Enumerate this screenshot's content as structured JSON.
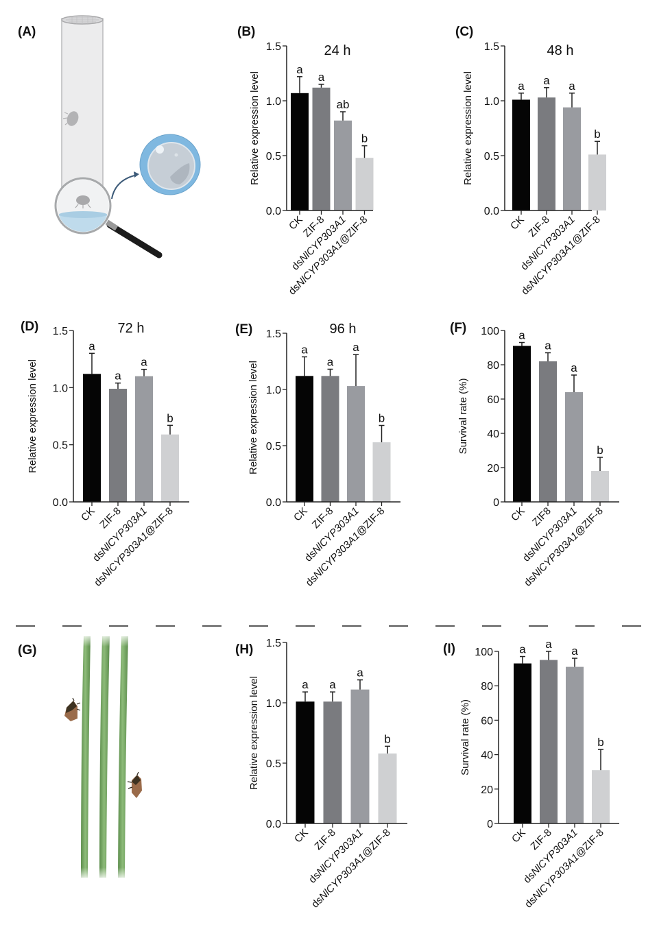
{
  "figure": {
    "panel_a": {
      "label": "(A)",
      "caption": "Tube feeding bioassay with magnified droplet view"
    },
    "panel_g": {
      "label": "(G)",
      "caption": "Planthoppers feeding on rice stems"
    }
  },
  "colors": {
    "bar_ck": "#050505",
    "bar_zif": "#7a7b7f",
    "bar_ds": "#999ba0",
    "bar_dszif": "#cfd0d2",
    "axis": "#222222",
    "tube_glass": "#eceded",
    "droplet_blue": "#7fb8e0",
    "stem_green": "#6e9e5c",
    "insect_brown": "#9a6b4a"
  },
  "chart_data": [
    {
      "id": "B",
      "panel_label": "(B)",
      "type": "bar",
      "title": "24 h",
      "ylabel": "Relative expression level",
      "ylim": [
        0,
        1.5
      ],
      "yticks": [
        0.0,
        0.5,
        1.0,
        1.5
      ],
      "ytick_labels": [
        "0.0",
        "0.5",
        "1.0",
        "1.5"
      ],
      "categories": [
        "CK",
        "ZIF-8",
        "dsNlCYP303A1",
        "dsNlCYP303A1@ZIF-8"
      ],
      "values": [
        1.07,
        1.12,
        0.82,
        0.48
      ],
      "error_upper": [
        1.22,
        1.15,
        0.9,
        0.59
      ],
      "significance": [
        "a",
        "a",
        "ab",
        "b"
      ]
    },
    {
      "id": "C",
      "panel_label": "(C)",
      "type": "bar",
      "title": "48 h",
      "ylabel": "Relative expression level",
      "ylim": [
        0,
        1.5
      ],
      "yticks": [
        0.0,
        0.5,
        1.0,
        1.5
      ],
      "ytick_labels": [
        "0.0",
        "0.5",
        "1.0",
        "1.5"
      ],
      "categories": [
        "CK",
        "ZIF-8",
        "dsNlCYP303A1",
        "dsNlCYP303A1@ZIF-8"
      ],
      "values": [
        1.01,
        1.03,
        0.94,
        0.51
      ],
      "error_upper": [
        1.07,
        1.12,
        1.07,
        0.63
      ],
      "significance": [
        "a",
        "a",
        "a",
        "b"
      ]
    },
    {
      "id": "D",
      "panel_label": "(D)",
      "type": "bar",
      "title": "72 h",
      "ylabel": "Relative expression level",
      "ylim": [
        0,
        1.5
      ],
      "yticks": [
        0.0,
        0.5,
        1.0,
        1.5
      ],
      "ytick_labels": [
        "0.0",
        "0.5",
        "1.0",
        "1.5"
      ],
      "categories": [
        "CK",
        "ZIF-8",
        "dsNlCYP303A1",
        "dsNlCYP303A1@ZIF-8"
      ],
      "values": [
        1.12,
        0.99,
        1.1,
        0.59
      ],
      "error_upper": [
        1.3,
        1.04,
        1.16,
        0.67
      ],
      "significance": [
        "a",
        "a",
        "a",
        "b"
      ]
    },
    {
      "id": "E",
      "panel_label": "(E)",
      "type": "bar",
      "title": "96 h",
      "ylabel": "Relative expression level",
      "ylim": [
        0,
        1.5
      ],
      "yticks": [
        0.0,
        0.5,
        1.0,
        1.5
      ],
      "ytick_labels": [
        "0.0",
        "0.5",
        "1.0",
        "1.5"
      ],
      "categories": [
        "CK",
        "ZIF-8",
        "dsNlCYP303A1",
        "dsNlCYP303A1@ZIF-8"
      ],
      "values": [
        1.12,
        1.12,
        1.03,
        0.53
      ],
      "error_upper": [
        1.29,
        1.18,
        1.31,
        0.68
      ],
      "significance": [
        "a",
        "a",
        "a",
        "b"
      ]
    },
    {
      "id": "F",
      "panel_label": "(F)",
      "type": "bar",
      "title": "",
      "ylabel": "Survival rate (%)",
      "ylim": [
        0,
        100
      ],
      "yticks": [
        0,
        20,
        40,
        60,
        80,
        100
      ],
      "ytick_labels": [
        "0",
        "20",
        "40",
        "60",
        "80",
        "100"
      ],
      "categories": [
        "CK",
        "ZIF8",
        "dsNlCYP303A1",
        "dsNlCYP303A1@ZIF-8"
      ],
      "values": [
        91,
        82,
        64,
        18
      ],
      "error_upper": [
        93,
        87,
        74,
        26
      ],
      "significance": [
        "a",
        "a",
        "a",
        "b"
      ]
    },
    {
      "id": "H",
      "panel_label": "(H)",
      "type": "bar",
      "title": "",
      "ylabel": "Relative expression level",
      "ylim": [
        0,
        1.5
      ],
      "yticks": [
        0.0,
        0.5,
        1.0,
        1.5
      ],
      "ytick_labels": [
        "0.0",
        "0.5",
        "1.0",
        "1.5"
      ],
      "categories": [
        "CK",
        "ZIF-8",
        "dsNlCYP303A1",
        "dsNlCYP303A1@ZIF-8"
      ],
      "values": [
        1.01,
        1.01,
        1.11,
        0.58
      ],
      "error_upper": [
        1.09,
        1.09,
        1.19,
        0.64
      ],
      "significance": [
        "a",
        "a",
        "a",
        "b"
      ]
    },
    {
      "id": "I",
      "panel_label": "(I)",
      "type": "bar",
      "title": "",
      "ylabel": "Survival rate (%)",
      "ylim": [
        0,
        100
      ],
      "yticks": [
        0,
        20,
        40,
        60,
        80,
        100
      ],
      "ytick_labels": [
        "0",
        "20",
        "40",
        "60",
        "80",
        "100"
      ],
      "categories": [
        "CK",
        "ZIF-8",
        "dsNlCYP303A1",
        "dsNlCYP303A1@ZIF-8"
      ],
      "values": [
        93,
        95,
        91,
        31
      ],
      "error_upper": [
        97,
        100,
        96,
        43
      ],
      "significance": [
        "a",
        "a",
        "a",
        "b"
      ]
    }
  ]
}
